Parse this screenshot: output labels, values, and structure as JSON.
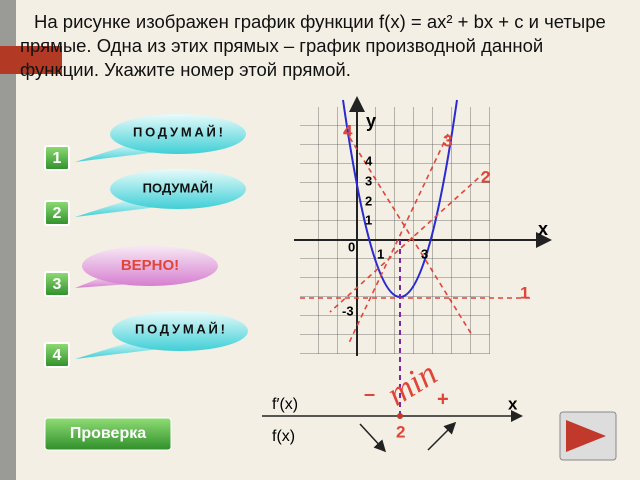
{
  "question": "На рисунке изображен график функции f(x) = ax² + bx + c и четыре прямые. Одна из этих прямых – график производной данной функции. Укажите номер этой прямой.",
  "options": [
    {
      "number": "1",
      "hint": "ПОДУМАЙ!"
    },
    {
      "number": "2",
      "hint": "ПОДУМАЙ!"
    },
    {
      "number": "3",
      "hint": "ВЕРНО!"
    },
    {
      "number": "4",
      "hint": "ПОДУМАЙ!"
    }
  ],
  "graph": {
    "axis_y": "y",
    "axis_x": "x",
    "origin": "0",
    "y_labels": [
      "4",
      "3",
      "2",
      "1"
    ],
    "x_labels": [
      "1",
      "3"
    ],
    "neg_label": "-3",
    "line_labels": [
      "4",
      "3",
      "2",
      "1"
    ]
  },
  "sign_chart": {
    "derivative": "f′(x)",
    "function": "f(x)",
    "minus": "–",
    "plus": "+",
    "axis": "x",
    "point": "2",
    "extremum": "min"
  },
  "button": "Проверка"
}
